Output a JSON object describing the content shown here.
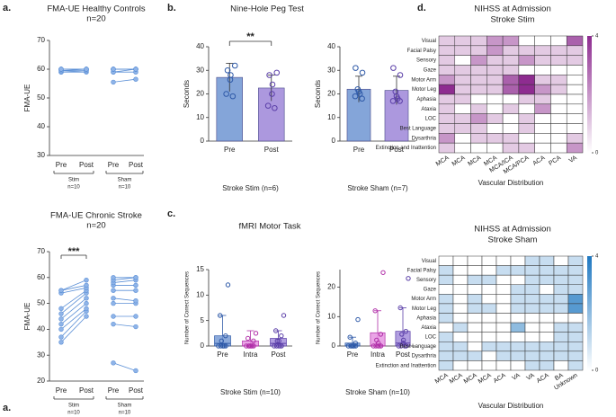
{
  "panel_labels": [
    "a.",
    "a.",
    "b.",
    "c.",
    "d."
  ],
  "chart_data": [
    {
      "type": "paired",
      "title": "FMA-UE Healthy Controls",
      "subtitle": "n=20",
      "y_label": "FMA-UE",
      "ylim": [
        30,
        70
      ],
      "yticks": [
        30,
        40,
        50,
        60,
        70
      ],
      "categories": [
        "Pre",
        "Post",
        "Pre",
        "Post"
      ],
      "color": "#5b8fd6",
      "groups": [
        {
          "name": "Stim",
          "n": "n=10",
          "pre": [
            59,
            59,
            59.5,
            59.5,
            60,
            60,
            60,
            60,
            60,
            60
          ],
          "post": [
            59,
            59.5,
            59.5,
            60,
            60,
            60,
            60,
            60,
            60,
            60
          ]
        },
        {
          "name": "Sham",
          "n": "n=10",
          "pre": [
            55.5,
            59,
            59,
            60,
            60,
            60,
            60,
            60,
            60,
            60
          ],
          "post": [
            56.5,
            59,
            60,
            60,
            60,
            60,
            60,
            60,
            60,
            60
          ]
        }
      ]
    },
    {
      "type": "paired",
      "title": "FMA-UE Chronic Stroke",
      "subtitle": "n=20",
      "y_label": "FMA-UE",
      "annotation": "***",
      "ylim": [
        20,
        70
      ],
      "yticks": [
        20,
        30,
        40,
        50,
        60,
        70
      ],
      "categories": [
        "Pre",
        "Post",
        "Pre",
        "Post"
      ],
      "color": "#5b8fd6",
      "groups": [
        {
          "name": "Stim",
          "n": "n=10",
          "pre": [
            35,
            37,
            40,
            42,
            44,
            46,
            48,
            54,
            55,
            55
          ],
          "post": [
            45,
            47,
            48,
            50,
            52,
            54,
            55,
            56,
            57,
            59
          ]
        },
        {
          "name": "Sham",
          "n": "n=10",
          "pre": [
            27,
            42,
            45,
            50,
            52,
            55,
            57,
            58,
            59,
            60
          ],
          "post": [
            24,
            41,
            45,
            50,
            51,
            55,
            57,
            59,
            60,
            60
          ]
        }
      ]
    },
    {
      "type": "bar_dot",
      "title": "Nine-Hole Peg Test",
      "y_label": "Seconds",
      "x_label": "Stroke Stim (n=6)",
      "annotation": "**",
      "ylim": [
        0,
        40
      ],
      "yticks": [
        0,
        10,
        20,
        30,
        40
      ],
      "categories": [
        "Pre",
        "Post"
      ],
      "colors": [
        "#6f95d2",
        "#9d86d8"
      ],
      "values": [
        27,
        22.5
      ],
      "errors": [
        6,
        5.5
      ],
      "points": [
        [
          19,
          20,
          26,
          28,
          30,
          32
        ],
        [
          14,
          15,
          20,
          24,
          28,
          29
        ]
      ]
    },
    {
      "type": "bar_dot",
      "y_label": "Seconds",
      "x_label": "Stroke Sham (n=7)",
      "ylim": [
        0,
        40
      ],
      "yticks": [
        0,
        10,
        20,
        30,
        40
      ],
      "categories": [
        "Pre",
        "Post"
      ],
      "colors": [
        "#6f95d2",
        "#9d86d8"
      ],
      "values": [
        22,
        21.5
      ],
      "errors": [
        5.5,
        6
      ],
      "points": [
        [
          18,
          19,
          20,
          21,
          22,
          29,
          31
        ],
        [
          17,
          17,
          18,
          19,
          21,
          28,
          31
        ]
      ]
    },
    {
      "type": "box",
      "title": "fMRI Motor Task",
      "y_label": "Number of Correct Sequences",
      "x_label": "Stroke Stim (n=10)",
      "ylim": [
        0,
        15
      ],
      "yticks": [
        0,
        5,
        10,
        15
      ],
      "categories": [
        "Pre",
        "Intra",
        "Post"
      ],
      "colors": [
        "#6f95d2",
        "#e58ee0",
        "#9d86d8"
      ],
      "min": [
        0,
        0,
        0
      ],
      "q1": [
        0,
        0,
        0
      ],
      "median": [
        0.5,
        0,
        0.5
      ],
      "q3": [
        2,
        1,
        1.5
      ],
      "max": [
        6,
        3,
        3
      ],
      "points": [
        [
          0,
          0,
          0,
          0,
          0,
          0,
          1,
          2,
          6,
          12
        ],
        [
          0,
          0,
          0,
          0,
          0,
          0,
          0,
          1,
          1.5,
          2.5
        ],
        [
          0,
          0,
          0,
          0,
          0,
          1,
          1,
          2,
          3,
          6
        ]
      ]
    },
    {
      "type": "box",
      "y_label": "Number of Correct Sequences",
      "x_label": "Stroke Sham (n=10)",
      "ylim": [
        0,
        26
      ],
      "yticks": [
        0,
        10,
        20
      ],
      "categories": [
        "Pre",
        "Intra",
        "Post"
      ],
      "colors": [
        "#6f95d2",
        "#e58ee0",
        "#9d86d8"
      ],
      "min": [
        0,
        0,
        0
      ],
      "q1": [
        0,
        0,
        0
      ],
      "median": [
        0,
        0,
        1
      ],
      "q3": [
        1,
        4.5,
        5
      ],
      "max": [
        3,
        12,
        13
      ],
      "points": [
        [
          0,
          0,
          0,
          0,
          0,
          0,
          0,
          1,
          3,
          9
        ],
        [
          0,
          0,
          0,
          0,
          0,
          1,
          2,
          4,
          12,
          25
        ],
        [
          0,
          0,
          0,
          0,
          1,
          2,
          4,
          5,
          13,
          23
        ]
      ]
    },
    {
      "type": "heatmap",
      "title": "NIHSS at Admission",
      "subtitle": "Stroke Stim",
      "x_label": "Vascular Distribution",
      "rows": [
        "Visual",
        "Facial Palsy",
        "Sensory",
        "Gaze",
        "Motor Arm",
        "Motor Leg",
        "Aphasia",
        "Ataxia",
        "LOC",
        "Best Language",
        "Dysarthria",
        "Extinction and Inattention"
      ],
      "columns": [
        "MCA",
        "MCA",
        "MCA",
        "MCA",
        "MCA/ICA",
        "MCA/PCA",
        "ACA",
        "PCA",
        "VA"
      ],
      "values": [
        [
          1,
          1,
          1,
          2,
          2,
          0,
          0,
          0,
          3
        ],
        [
          1,
          1,
          1,
          2,
          1,
          1,
          1,
          1,
          1
        ],
        [
          1,
          0,
          2,
          1,
          1,
          2,
          1,
          1,
          1
        ],
        [
          1,
          1,
          1,
          1,
          1,
          0,
          0,
          0,
          0
        ],
        [
          2,
          1,
          1,
          1,
          3,
          4,
          1,
          1,
          0
        ],
        [
          4,
          1,
          1,
          1,
          3,
          4,
          2,
          1,
          0
        ],
        [
          1,
          1,
          0,
          0,
          0,
          1,
          1,
          0,
          0
        ],
        [
          1,
          0,
          1,
          0,
          1,
          0,
          2,
          0,
          0
        ],
        [
          1,
          1,
          2,
          1,
          0,
          1,
          0,
          0,
          0
        ],
        [
          1,
          1,
          1,
          0,
          0,
          1,
          0,
          0,
          0
        ],
        [
          2,
          0,
          1,
          1,
          1,
          0,
          0,
          0,
          1
        ],
        [
          1,
          0,
          0,
          0,
          1,
          1,
          0,
          0,
          2
        ]
      ],
      "zlim": [
        0,
        4
      ],
      "zticks": [
        0,
        4
      ],
      "colors": [
        "#ffffff",
        "#8e2c90"
      ]
    },
    {
      "type": "heatmap",
      "title": "NIHSS at Admission",
      "subtitle": "Stroke Sham",
      "x_label": "Vascular Distribution",
      "rows": [
        "Visual",
        "Facial Palsy",
        "Sensory",
        "Gaze",
        "Motor Arm",
        "Motor Leg",
        "Aphasia",
        "Ataxia",
        "LOC",
        "Best Language",
        "Dysarthria",
        "Extinction and Inattention"
      ],
      "columns": [
        "MCA",
        "MCA",
        "MCA",
        "MCA",
        "ACA",
        "VA",
        "VA",
        "ACA",
        "BA",
        "Unknown"
      ],
      "values": [
        [
          0,
          0,
          0,
          0,
          0,
          0,
          1,
          1,
          0,
          1
        ],
        [
          1,
          0,
          0,
          0,
          1,
          1,
          1,
          1,
          1,
          1
        ],
        [
          1,
          0,
          1,
          1,
          0,
          0,
          1,
          1,
          1,
          1
        ],
        [
          0,
          0,
          0,
          0,
          0,
          1,
          1,
          0,
          1,
          1
        ],
        [
          1,
          0,
          1,
          0,
          0,
          1,
          1,
          1,
          1,
          3
        ],
        [
          1,
          0,
          1,
          1,
          0,
          1,
          1,
          1,
          1,
          3
        ],
        [
          1,
          0,
          0,
          0,
          0,
          0,
          0,
          0,
          0,
          0
        ],
        [
          0,
          1,
          0,
          0,
          0,
          2,
          0,
          0,
          1,
          1
        ],
        [
          1,
          0,
          0,
          0,
          0,
          0,
          0,
          0,
          1,
          1
        ],
        [
          1,
          1,
          0,
          1,
          1,
          1,
          1,
          1,
          1,
          1
        ],
        [
          1,
          1,
          1,
          0,
          1,
          1,
          1,
          1,
          1,
          1
        ],
        [
          1,
          0,
          0,
          0,
          0,
          0,
          1,
          1,
          0,
          1
        ]
      ],
      "zlim": [
        0,
        4
      ],
      "zticks": [
        0,
        4
      ],
      "colors": [
        "#ffffff",
        "#1f78c1"
      ]
    }
  ]
}
